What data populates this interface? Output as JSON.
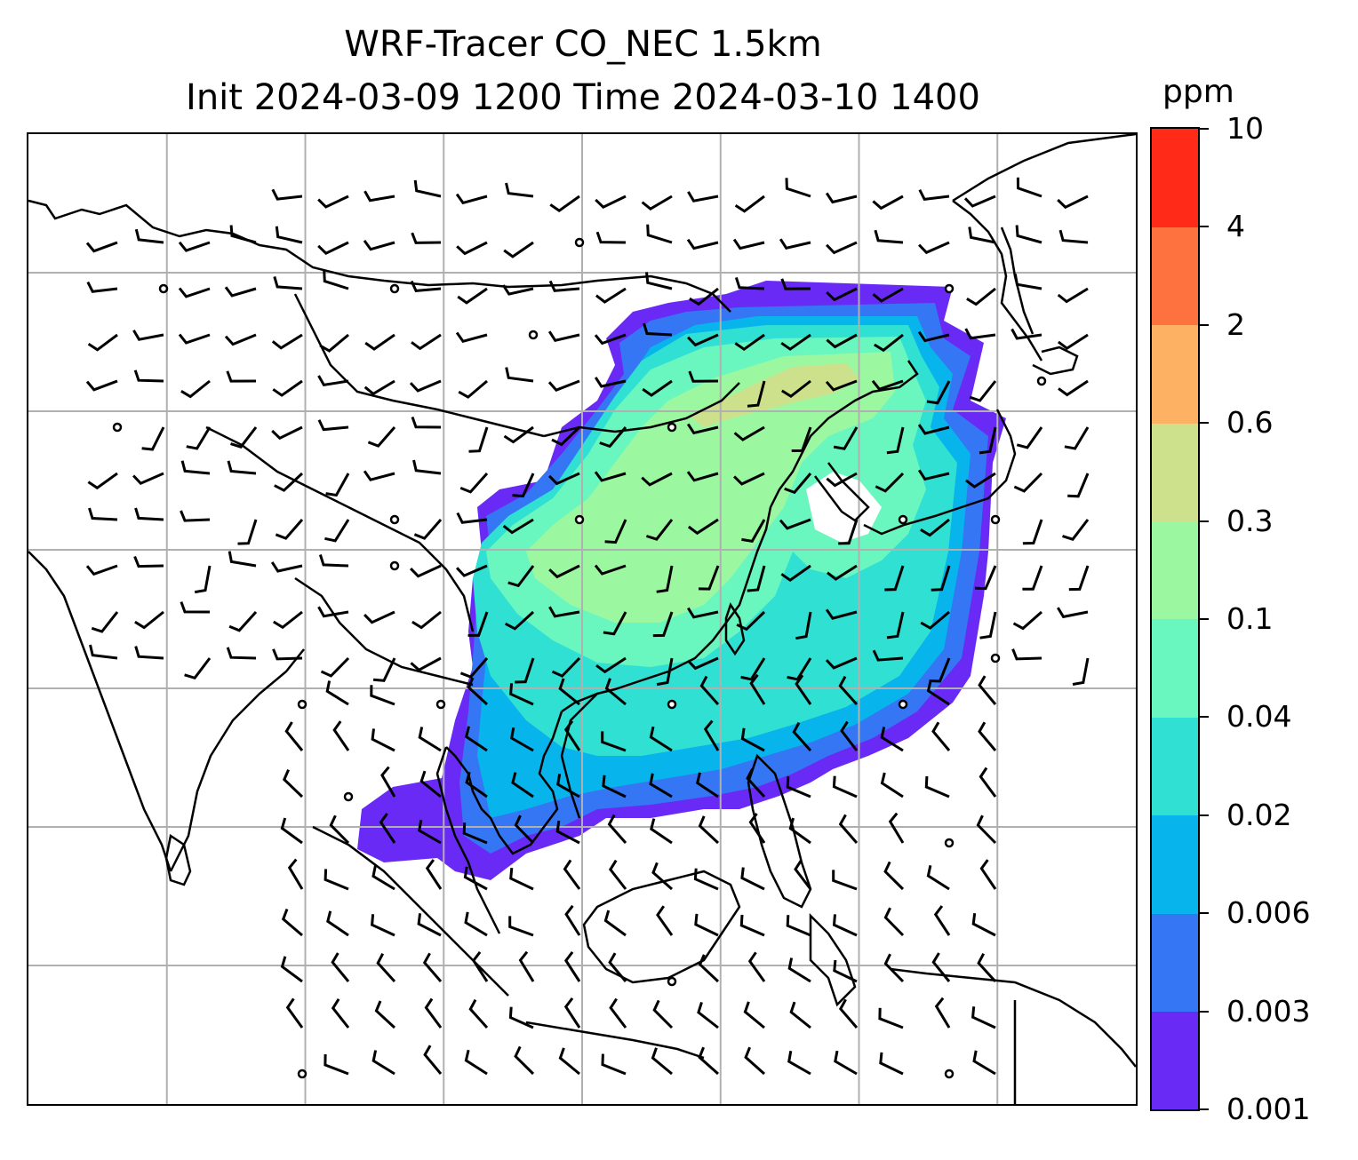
{
  "title": {
    "line1": "WRF-Tracer CO_NEC 1.5km",
    "line2": "Init 2024-03-09 1200 Time 2024-03-10 1400"
  },
  "colorbar": {
    "units": "ppm",
    "levels": [
      "0.001",
      "0.003",
      "0.006",
      "0.02",
      "0.04",
      "0.1",
      "0.3",
      "0.6",
      "2",
      "4",
      "10"
    ],
    "colors": [
      "#6a2af5",
      "#3576f4",
      "#07b4ec",
      "#30e0d2",
      "#6af7bf",
      "#9cf7a1",
      "#cde18c",
      "#fdb162",
      "#fe7240",
      "#ff2a18"
    ]
  },
  "map": {
    "gridlines": true,
    "projection_grid_count": {
      "columns": 8,
      "rows": 7
    },
    "wind_barbs": true,
    "coastline_color": "#000000",
    "gridline_color": "#b0b0b0"
  }
}
